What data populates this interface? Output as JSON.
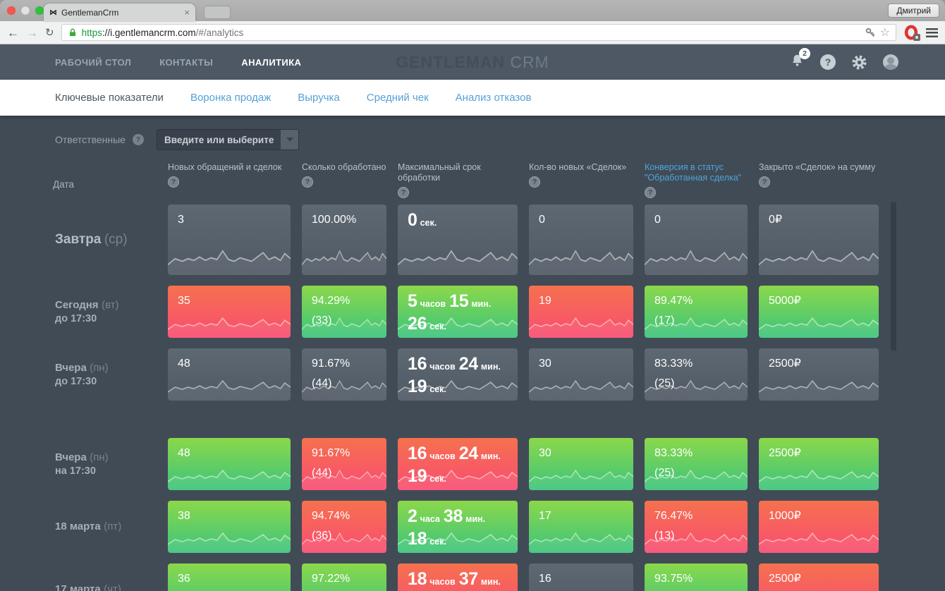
{
  "browser": {
    "tab": {
      "title": "GentlemanCrm",
      "favicon": "⋈",
      "close": "×"
    },
    "profile": "Дмитрий",
    "url": {
      "scheme": "https",
      "host": "://i.gentlemancrm.com",
      "path": "/#/analytics"
    },
    "icons": {
      "back": "←",
      "forward": "→",
      "reload": "↻",
      "star": "☆"
    }
  },
  "nav": {
    "items": [
      {
        "label": "РАБОЧИЙ СТОЛ"
      },
      {
        "label": "КОНТАКТЫ"
      },
      {
        "label": "АНАЛИТИКА"
      }
    ],
    "logo_main": "GENTLEMAN",
    "logo_sub": "CRM",
    "bell_badge": "2",
    "help_glyph": "?"
  },
  "subtabs": [
    {
      "label": "Ключевые показатели"
    },
    {
      "label": "Воронка продаж"
    },
    {
      "label": "Выручка"
    },
    {
      "label": "Средний чек"
    },
    {
      "label": "Анализ отказов"
    }
  ],
  "filter": {
    "label": "Ответственные",
    "help": "?",
    "placeholder": "Введите или выберите"
  },
  "table": {
    "date_header": "Дата",
    "columns": [
      {
        "label": "Новых обращений и сделок",
        "help": "?"
      },
      {
        "label": "Сколько обработано",
        "help": "?"
      },
      {
        "label": "Максимальный срок обработки",
        "help": "?"
      },
      {
        "label": "Кол-во новых «Сделок»",
        "help": "?"
      },
      {
        "label": "Конверсия в статус \"Обработанная сделка\"",
        "help": "?",
        "accent": true
      },
      {
        "label": "Закрыто «Сделок» на сумму",
        "help": "?"
      }
    ],
    "rows": [
      {
        "main": "Завтра",
        "paren": "(ср)",
        "big": true,
        "cells": [
          {
            "kind": "num",
            "value": "3",
            "color": "gray"
          },
          {
            "kind": "num",
            "value": "100.00%",
            "color": "gray"
          },
          {
            "kind": "dur",
            "parts": [
              [
                "0",
                "сек."
              ]
            ],
            "color": "gray"
          },
          {
            "kind": "num",
            "value": "0",
            "color": "gray"
          },
          {
            "kind": "num",
            "value": "0",
            "color": "gray"
          },
          {
            "kind": "num",
            "value": "0₽",
            "color": "gray"
          }
        ]
      },
      {
        "main": "Сегодня",
        "paren": "(вт)",
        "sub": "до 17:30",
        "cells": [
          {
            "kind": "num",
            "value": "35",
            "color": "red"
          },
          {
            "kind": "pct",
            "value": "94.29%",
            "sub": "(33)",
            "color": "green"
          },
          {
            "kind": "dur",
            "parts": [
              [
                "5",
                "часов"
              ],
              [
                "15",
                "мин."
              ]
            ],
            "line2": [
              [
                "26",
                "сек."
              ]
            ],
            "color": "green"
          },
          {
            "kind": "num",
            "value": "19",
            "color": "red"
          },
          {
            "kind": "pct",
            "value": "89.47%",
            "sub": "(17)",
            "color": "green"
          },
          {
            "kind": "num",
            "value": "5000₽",
            "color": "green"
          }
        ]
      },
      {
        "main": "Вчера",
        "paren": "(пн)",
        "sub": "до 17:30",
        "gap_after": true,
        "cells": [
          {
            "kind": "num",
            "value": "48",
            "color": "gray"
          },
          {
            "kind": "pct",
            "value": "91.67%",
            "sub": "(44)",
            "color": "gray"
          },
          {
            "kind": "dur",
            "parts": [
              [
                "16",
                "часов"
              ],
              [
                "24",
                "мин."
              ]
            ],
            "line2": [
              [
                "19",
                "сек."
              ]
            ],
            "color": "gray"
          },
          {
            "kind": "num",
            "value": "30",
            "color": "gray"
          },
          {
            "kind": "pct",
            "value": "83.33%",
            "sub": "(25)",
            "color": "gray"
          },
          {
            "kind": "num",
            "value": "2500₽",
            "color": "gray"
          }
        ]
      },
      {
        "main": "Вчера",
        "paren": "(пн)",
        "sub": "на 17:30",
        "cells": [
          {
            "kind": "num",
            "value": "48",
            "color": "green"
          },
          {
            "kind": "pct",
            "value": "91.67%",
            "sub": "(44)",
            "color": "red"
          },
          {
            "kind": "dur",
            "parts": [
              [
                "16",
                "часов"
              ],
              [
                "24",
                "мин."
              ]
            ],
            "line2": [
              [
                "19",
                "сек."
              ]
            ],
            "color": "red"
          },
          {
            "kind": "num",
            "value": "30",
            "color": "green"
          },
          {
            "kind": "pct",
            "value": "83.33%",
            "sub": "(25)",
            "color": "green"
          },
          {
            "kind": "num",
            "value": "2500₽",
            "color": "green"
          }
        ]
      },
      {
        "main": "18 марта",
        "paren": "(пт)",
        "cells": [
          {
            "kind": "num",
            "value": "38",
            "color": "green"
          },
          {
            "kind": "pct",
            "value": "94.74%",
            "sub": "(36)",
            "color": "red"
          },
          {
            "kind": "dur",
            "parts": [
              [
                "2",
                "часа"
              ],
              [
                "38",
                "мин."
              ]
            ],
            "line2": [
              [
                "18",
                "сек."
              ]
            ],
            "color": "green"
          },
          {
            "kind": "num",
            "value": "17",
            "color": "green"
          },
          {
            "kind": "pct",
            "value": "76.47%",
            "sub": "(13)",
            "color": "red"
          },
          {
            "kind": "num",
            "value": "1000₽",
            "color": "red"
          }
        ]
      },
      {
        "main": "17 марта",
        "paren": "(чт)",
        "cells": [
          {
            "kind": "num",
            "value": "36",
            "color": "green"
          },
          {
            "kind": "num",
            "value": "97.22%",
            "color": "green"
          },
          {
            "kind": "dur",
            "parts": [
              [
                "18",
                "часов"
              ],
              [
                "37",
                "мин."
              ]
            ],
            "color": "red"
          },
          {
            "kind": "num",
            "value": "16",
            "color": "gray"
          },
          {
            "kind": "num",
            "value": "93.75%",
            "color": "green"
          },
          {
            "kind": "num",
            "value": "2500₽",
            "color": "red"
          }
        ]
      }
    ]
  },
  "colors": {
    "accent_blue": "#55a1d6",
    "cell_gray_top": "#5e6873",
    "cell_gray_bottom": "#505a64",
    "cell_red_top": "#f5714e",
    "cell_red_bottom": "#f94d72",
    "cell_green_top": "#8bd84a",
    "cell_green_bottom": "#3cc47d",
    "navbar_bg": "#4d5864",
    "content_bg": "#414b56"
  }
}
